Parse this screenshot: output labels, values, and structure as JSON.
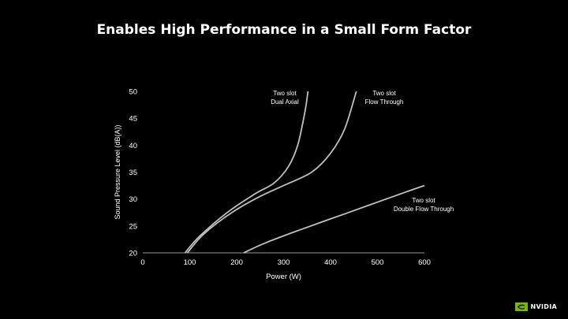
{
  "slide": {
    "title": "Enables High Performance in a Small Form Factor"
  },
  "brand": {
    "logo_text": "NVIDIA",
    "accent": "#76b900"
  },
  "chart_data": {
    "type": "line",
    "title": "",
    "xlabel": "Power (W)",
    "ylabel": "Sound Pressure Level (dB(A))",
    "xlim": [
      0,
      600
    ],
    "ylim": [
      20,
      50
    ],
    "xticks": [
      0,
      100,
      200,
      300,
      400,
      500,
      600
    ],
    "yticks": [
      20,
      25,
      30,
      35,
      40,
      45,
      50
    ],
    "grid": false,
    "line_color": "#bfbfbf",
    "series": [
      {
        "name": "Two slot Dual Axial",
        "label_lines": [
          "Two slot",
          "Dual Axial"
        ],
        "points": [
          [
            90,
            20
          ],
          [
            120,
            23
          ],
          [
            180,
            27.5
          ],
          [
            240,
            31
          ],
          [
            280,
            33
          ],
          [
            310,
            36
          ],
          [
            330,
            40
          ],
          [
            345,
            46
          ],
          [
            352,
            50
          ]
        ]
      },
      {
        "name": "Two slot Flow Through",
        "label_lines": [
          "Two slot",
          "Flow Through"
        ],
        "points": [
          [
            95,
            20
          ],
          [
            130,
            23.5
          ],
          [
            190,
            27.5
          ],
          [
            250,
            30.5
          ],
          [
            300,
            32.5
          ],
          [
            360,
            35
          ],
          [
            400,
            38.5
          ],
          [
            430,
            43
          ],
          [
            455,
            50
          ]
        ]
      },
      {
        "name": "Two slot Double Flow Through",
        "label_lines": [
          "Two slot",
          "Double Flow Through"
        ],
        "points": [
          [
            215,
            20
          ],
          [
            260,
            21.8
          ],
          [
            320,
            23.8
          ],
          [
            400,
            26.3
          ],
          [
            480,
            28.8
          ],
          [
            560,
            31.3
          ],
          [
            600,
            32.5
          ]
        ]
      }
    ]
  }
}
